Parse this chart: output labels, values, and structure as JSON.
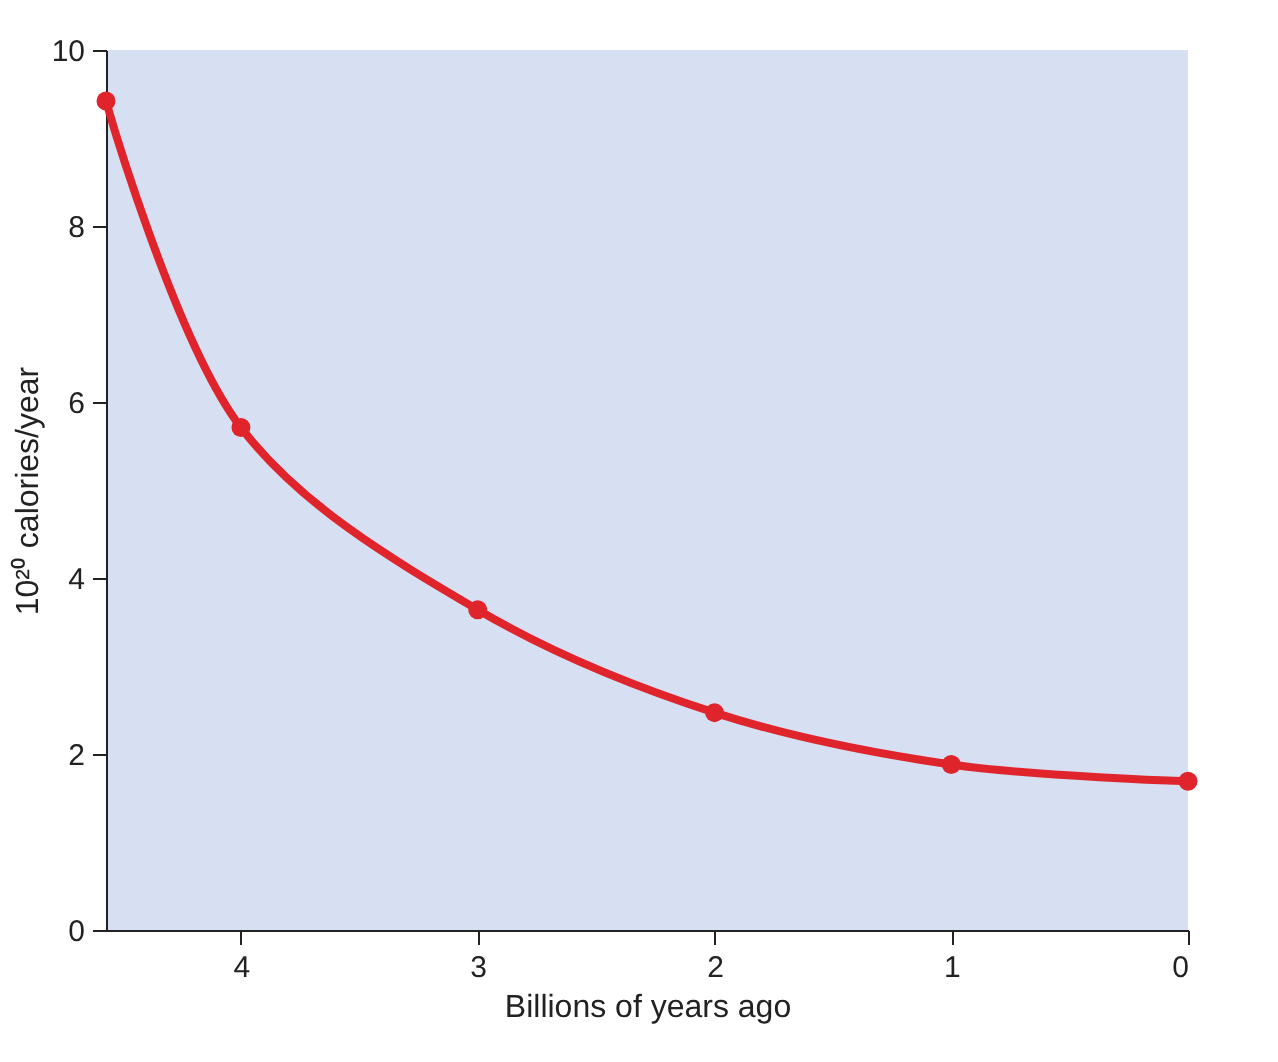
{
  "chart_data": {
    "type": "line",
    "xlabel": "Billions of years ago",
    "ylabel": "10²⁰ calories/year",
    "x": [
      4.57,
      4,
      3,
      2,
      1,
      0
    ],
    "series": [
      {
        "color": "#e0242c",
        "values": [
          9.42,
          5.71,
          3.64,
          2.47,
          1.88,
          1.69
        ]
      }
    ],
    "xlim": [
      4.57,
      0
    ],
    "xticks": [
      4,
      3,
      2,
      1,
      0
    ],
    "ylim": [
      0,
      10
    ],
    "yticks": [
      0,
      2,
      4,
      6,
      8,
      10
    ],
    "grid": false,
    "legend": false,
    "marker": "circle",
    "line_style": "solid"
  }
}
